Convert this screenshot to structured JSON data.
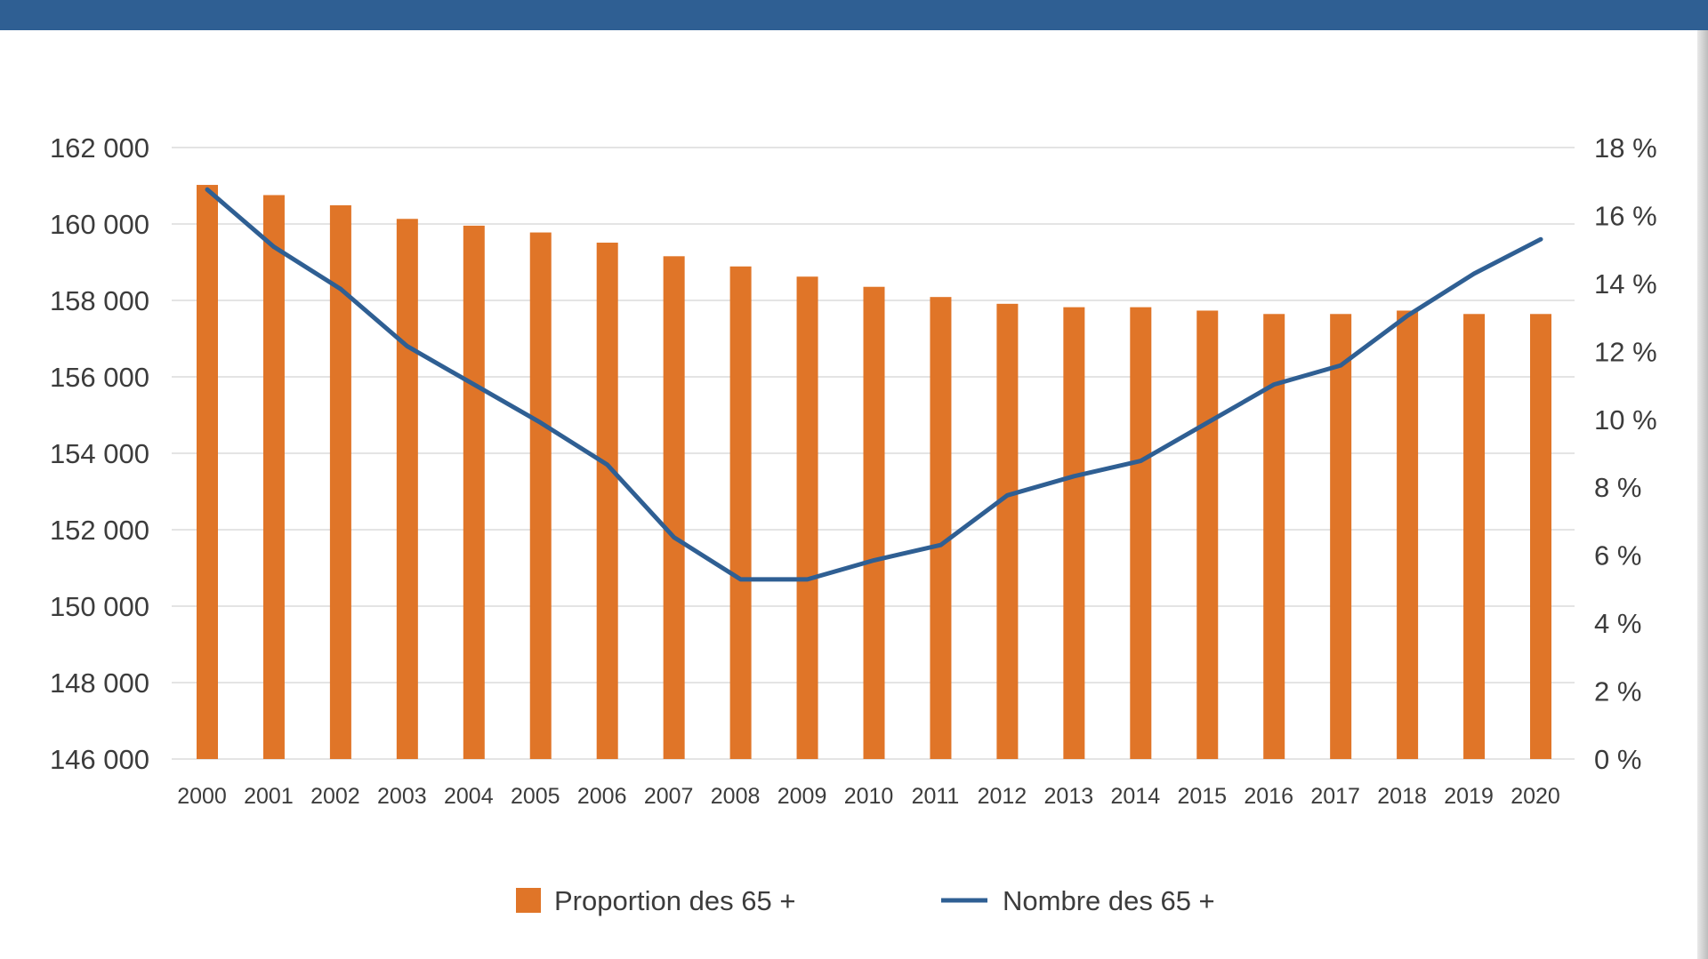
{
  "chart_data": {
    "type": "bar",
    "categories": [
      "2000",
      "2001",
      "2002",
      "2003",
      "2004",
      "2005",
      "2006",
      "2007",
      "2008",
      "2009",
      "2010",
      "2011",
      "2012",
      "2013",
      "2014",
      "2015",
      "2016",
      "2017",
      "2018",
      "2019",
      "2020"
    ],
    "series": [
      {
        "name": "Proportion des 65 +",
        "type": "bar",
        "axis": "right",
        "color": "#e07528",
        "values": [
          16.9,
          16.6,
          16.3,
          15.9,
          15.7,
          15.5,
          15.2,
          14.8,
          14.5,
          14.2,
          13.9,
          13.6,
          13.4,
          13.3,
          13.3,
          13.2,
          13.1,
          13.1,
          13.2,
          13.1,
          13.1
        ]
      },
      {
        "name": "Nombre des 65 +",
        "type": "line",
        "axis": "left",
        "color": "#2f5f93",
        "values": [
          160900,
          159400,
          158300,
          156800,
          155800,
          154800,
          153700,
          151800,
          150700,
          150700,
          151200,
          151600,
          152900,
          153400,
          153800,
          154800,
          155800,
          156300,
          157600,
          158700,
          159600
        ]
      }
    ],
    "y_left": {
      "min": 146000,
      "max": 162000,
      "ticks": [
        146000,
        148000,
        150000,
        152000,
        154000,
        156000,
        158000,
        160000,
        162000
      ],
      "tick_labels": [
        "146 000",
        "148 000",
        "150 000",
        "152 000",
        "154 000",
        "156 000",
        "158 000",
        "160 000",
        "162 000"
      ]
    },
    "y_right": {
      "min": 0,
      "max": 18,
      "ticks": [
        0,
        2,
        4,
        6,
        8,
        10,
        12,
        14,
        16,
        18
      ],
      "tick_labels": [
        "0 %",
        "2 %",
        "4 %",
        "6 %",
        "8 %",
        "10 %",
        "12 %",
        "14 %",
        "16 %",
        "18 %"
      ]
    },
    "grid": true,
    "legend_position": "bottom",
    "legend": [
      {
        "label": "Proportion des 65 +",
        "marker": "square",
        "color": "#e07528"
      },
      {
        "label": "Nombre des 65 +",
        "marker": "line",
        "color": "#2f5f93"
      }
    ],
    "title": "",
    "xlabel": "",
    "ylabel": ""
  }
}
